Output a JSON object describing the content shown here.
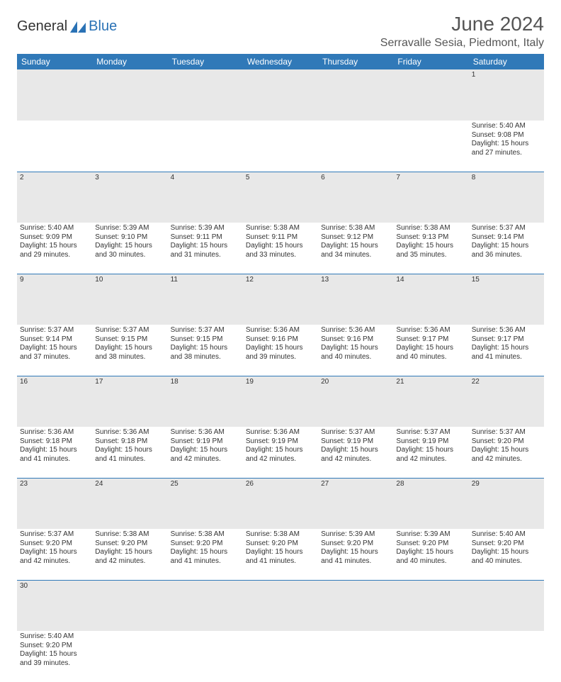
{
  "logo": {
    "text1": "General",
    "text2": "Blue",
    "shape_color": "#2a72b5"
  },
  "title": "June 2024",
  "location": "Serravalle Sesia, Piedmont, Italy",
  "colors": {
    "header_bg": "#3079b8",
    "header_text": "#ffffff",
    "daynum_bg": "#e8e8e8",
    "row_divider": "#3079b8",
    "text": "#333333"
  },
  "day_headers": [
    "Sunday",
    "Monday",
    "Tuesday",
    "Wednesday",
    "Thursday",
    "Friday",
    "Saturday"
  ],
  "labels": {
    "sunrise": "Sunrise:",
    "sunset": "Sunset:",
    "daylight": "Daylight:"
  },
  "weeks": [
    [
      null,
      null,
      null,
      null,
      null,
      null,
      {
        "n": "1",
        "sr": "5:40 AM",
        "ss": "9:08 PM",
        "dl": "15 hours and 27 minutes."
      }
    ],
    [
      {
        "n": "2",
        "sr": "5:40 AM",
        "ss": "9:09 PM",
        "dl": "15 hours and 29 minutes."
      },
      {
        "n": "3",
        "sr": "5:39 AM",
        "ss": "9:10 PM",
        "dl": "15 hours and 30 minutes."
      },
      {
        "n": "4",
        "sr": "5:39 AM",
        "ss": "9:11 PM",
        "dl": "15 hours and 31 minutes."
      },
      {
        "n": "5",
        "sr": "5:38 AM",
        "ss": "9:11 PM",
        "dl": "15 hours and 33 minutes."
      },
      {
        "n": "6",
        "sr": "5:38 AM",
        "ss": "9:12 PM",
        "dl": "15 hours and 34 minutes."
      },
      {
        "n": "7",
        "sr": "5:38 AM",
        "ss": "9:13 PM",
        "dl": "15 hours and 35 minutes."
      },
      {
        "n": "8",
        "sr": "5:37 AM",
        "ss": "9:14 PM",
        "dl": "15 hours and 36 minutes."
      }
    ],
    [
      {
        "n": "9",
        "sr": "5:37 AM",
        "ss": "9:14 PM",
        "dl": "15 hours and 37 minutes."
      },
      {
        "n": "10",
        "sr": "5:37 AM",
        "ss": "9:15 PM",
        "dl": "15 hours and 38 minutes."
      },
      {
        "n": "11",
        "sr": "5:37 AM",
        "ss": "9:15 PM",
        "dl": "15 hours and 38 minutes."
      },
      {
        "n": "12",
        "sr": "5:36 AM",
        "ss": "9:16 PM",
        "dl": "15 hours and 39 minutes."
      },
      {
        "n": "13",
        "sr": "5:36 AM",
        "ss": "9:16 PM",
        "dl": "15 hours and 40 minutes."
      },
      {
        "n": "14",
        "sr": "5:36 AM",
        "ss": "9:17 PM",
        "dl": "15 hours and 40 minutes."
      },
      {
        "n": "15",
        "sr": "5:36 AM",
        "ss": "9:17 PM",
        "dl": "15 hours and 41 minutes."
      }
    ],
    [
      {
        "n": "16",
        "sr": "5:36 AM",
        "ss": "9:18 PM",
        "dl": "15 hours and 41 minutes."
      },
      {
        "n": "17",
        "sr": "5:36 AM",
        "ss": "9:18 PM",
        "dl": "15 hours and 41 minutes."
      },
      {
        "n": "18",
        "sr": "5:36 AM",
        "ss": "9:19 PM",
        "dl": "15 hours and 42 minutes."
      },
      {
        "n": "19",
        "sr": "5:36 AM",
        "ss": "9:19 PM",
        "dl": "15 hours and 42 minutes."
      },
      {
        "n": "20",
        "sr": "5:37 AM",
        "ss": "9:19 PM",
        "dl": "15 hours and 42 minutes."
      },
      {
        "n": "21",
        "sr": "5:37 AM",
        "ss": "9:19 PM",
        "dl": "15 hours and 42 minutes."
      },
      {
        "n": "22",
        "sr": "5:37 AM",
        "ss": "9:20 PM",
        "dl": "15 hours and 42 minutes."
      }
    ],
    [
      {
        "n": "23",
        "sr": "5:37 AM",
        "ss": "9:20 PM",
        "dl": "15 hours and 42 minutes."
      },
      {
        "n": "24",
        "sr": "5:38 AM",
        "ss": "9:20 PM",
        "dl": "15 hours and 42 minutes."
      },
      {
        "n": "25",
        "sr": "5:38 AM",
        "ss": "9:20 PM",
        "dl": "15 hours and 41 minutes."
      },
      {
        "n": "26",
        "sr": "5:38 AM",
        "ss": "9:20 PM",
        "dl": "15 hours and 41 minutes."
      },
      {
        "n": "27",
        "sr": "5:39 AM",
        "ss": "9:20 PM",
        "dl": "15 hours and 41 minutes."
      },
      {
        "n": "28",
        "sr": "5:39 AM",
        "ss": "9:20 PM",
        "dl": "15 hours and 40 minutes."
      },
      {
        "n": "29",
        "sr": "5:40 AM",
        "ss": "9:20 PM",
        "dl": "15 hours and 40 minutes."
      }
    ],
    [
      {
        "n": "30",
        "sr": "5:40 AM",
        "ss": "9:20 PM",
        "dl": "15 hours and 39 minutes."
      },
      null,
      null,
      null,
      null,
      null,
      null
    ]
  ]
}
